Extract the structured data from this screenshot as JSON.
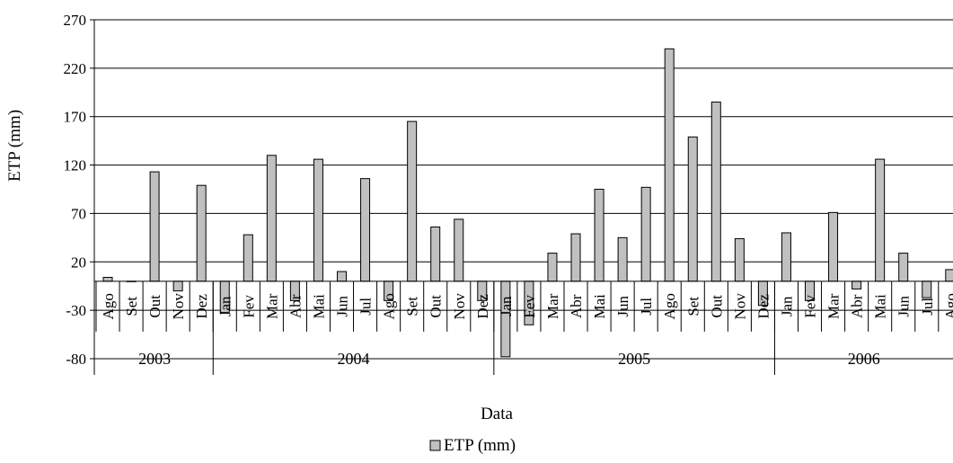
{
  "chart_data": {
    "type": "bar",
    "ylabel": "ETP (mm)",
    "xlabel": "Data",
    "ylim": [
      -80,
      270
    ],
    "yticks": [
      -80,
      -30,
      20,
      70,
      120,
      170,
      220,
      270
    ],
    "grid": true,
    "legend_position": "bottom-center",
    "categories": [
      "Ago",
      "Set",
      "Out",
      "Nov",
      "Dez",
      "Jan",
      "Fev",
      "Mar",
      "Abr",
      "Mai",
      "Jun",
      "Jul",
      "Ago",
      "Set",
      "Out",
      "Nov",
      "Dez",
      "Jan",
      "Fev",
      "Mar",
      "Abr",
      "Mai",
      "Jun",
      "Jul",
      "Ago",
      "Set",
      "Out",
      "Nov",
      "Dez",
      "Jan",
      "Fev",
      "Mar",
      "Abr",
      "Mai",
      "Jun",
      "Jul",
      "Ago"
    ],
    "years": [
      {
        "label": "2003",
        "start": 0,
        "count": 5
      },
      {
        "label": "2004",
        "start": 5,
        "count": 12
      },
      {
        "label": "2005",
        "start": 17,
        "count": 12
      },
      {
        "label": "2006",
        "start": 29,
        "count": 8
      }
    ],
    "series": [
      {
        "name": "ETP (mm)",
        "color": "#c0c0c0",
        "values": [
          4,
          0,
          113,
          -10,
          99,
          -33,
          48,
          130,
          -20,
          126,
          10,
          106,
          -20,
          165,
          56,
          64,
          -20,
          -78,
          -45,
          29,
          49,
          95,
          45,
          97,
          240,
          149,
          185,
          44,
          -25,
          50,
          -20,
          71,
          -8,
          126,
          29,
          -17,
          12
        ]
      }
    ]
  }
}
